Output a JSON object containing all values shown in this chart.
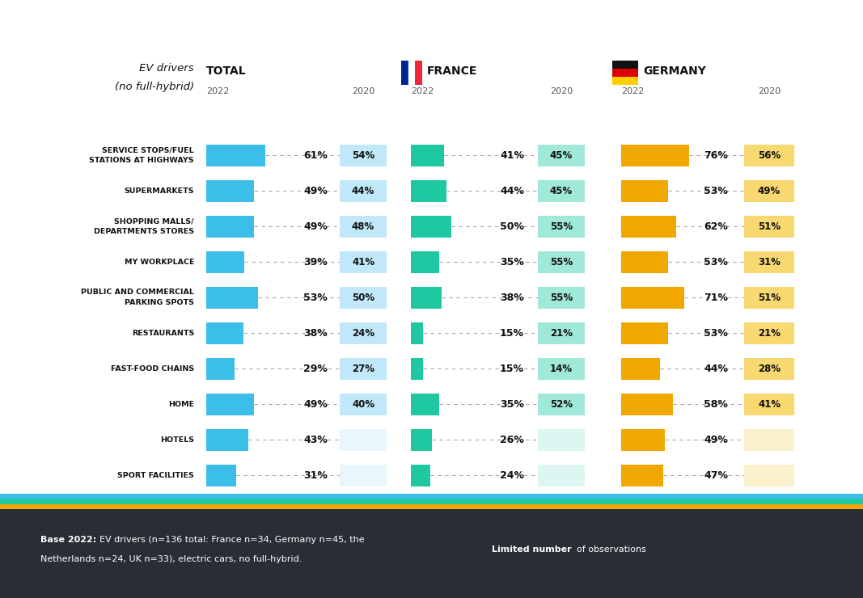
{
  "categories": [
    "SERVICE STOPS/FUEL\nSTATIONS AT HIGHWAYS",
    "SUPERMARKETS",
    "SHOPPING MALLS/\nDEPARTMENTS STORES",
    "MY WORKPLACE",
    "PUBLIC AND COMMERCIAL\nPARKING SPOTS",
    "RESTAURANTS",
    "FAST-FOOD CHAINS",
    "HOME",
    "HOTELS",
    "SPORT FACILITIES"
  ],
  "total_2022": [
    61,
    49,
    49,
    39,
    53,
    38,
    29,
    49,
    43,
    31
  ],
  "total_2020": [
    54,
    44,
    48,
    41,
    50,
    24,
    27,
    40,
    null,
    null
  ],
  "france_2022": [
    41,
    44,
    50,
    35,
    38,
    15,
    15,
    35,
    26,
    24
  ],
  "france_2020": [
    45,
    45,
    55,
    55,
    55,
    21,
    14,
    52,
    null,
    null
  ],
  "germany_2022": [
    76,
    53,
    62,
    53,
    71,
    53,
    44,
    58,
    49,
    47
  ],
  "germany_2020": [
    56,
    49,
    51,
    31,
    51,
    21,
    28,
    41,
    null,
    null
  ],
  "color_total_2022": "#3BBFE8",
  "color_total_2020": "#C0E8F8",
  "color_france_2022": "#1EC8A0",
  "color_france_2020": "#A0E8D8",
  "color_germany_2022": "#F0A800",
  "color_germany_2020": "#F8D870",
  "bg_color": "#FFFFFF",
  "footer_bg": "#2A2D35",
  "stripe1_color": "#3BBFE8",
  "stripe2_color": "#1EC8A0",
  "stripe3_color": "#F0A800"
}
